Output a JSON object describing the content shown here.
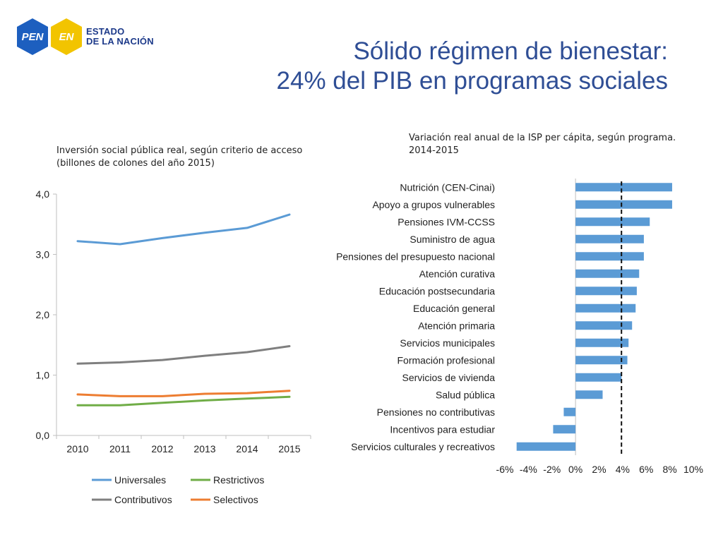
{
  "logo": {
    "badge1": "PEN",
    "badge2": "EN",
    "line1": "ESTADO",
    "line2": "DE LA NACIÓN",
    "colors": {
      "blue": "#1d5fbf",
      "yellow": "#f2c400",
      "text": "#1d3a8a"
    }
  },
  "title": {
    "line1": "Sólido régimen de bienestar:",
    "line2": "24% del PIB en programas sociales"
  },
  "left_subtitle": {
    "line1": "Inversión social pública real, según criterio de acceso",
    "line2": "(billones de colones del año 2015)"
  },
  "right_subtitle": {
    "line1": "Variación real anual de la ISP per cápita, según programa.",
    "line2": "2014-2015"
  },
  "chart_data": [
    {
      "type": "line",
      "title": "Inversión social pública real, según criterio de acceso (billones de colones del año 2015)",
      "x": [
        "2010",
        "2011",
        "2012",
        "2013",
        "2014",
        "2015"
      ],
      "ylim": [
        0,
        4
      ],
      "yticks": [
        0,
        1,
        2,
        3,
        4
      ],
      "ytick_labels": [
        "0,0",
        "1,0",
        "2,0",
        "3,0",
        "4,0"
      ],
      "legend_position": "bottom",
      "series": [
        {
          "name": "Universales",
          "color": "#5b9bd5",
          "values": [
            3.22,
            3.17,
            3.27,
            3.36,
            3.44,
            3.66
          ]
        },
        {
          "name": "Restrictivos",
          "color": "#70ad47",
          "values": [
            0.5,
            0.5,
            0.54,
            0.58,
            0.61,
            0.64
          ]
        },
        {
          "name": "Contributivos",
          "color": "#7f7f7f",
          "values": [
            1.19,
            1.21,
            1.25,
            1.32,
            1.38,
            1.48
          ]
        },
        {
          "name": "Selectivos",
          "color": "#ed7d31",
          "values": [
            0.68,
            0.65,
            0.65,
            0.69,
            0.7,
            0.74
          ]
        }
      ]
    },
    {
      "type": "bar",
      "orientation": "horizontal",
      "title": "Variación real anual de la ISP per cápita, según programa. 2014-2015",
      "bar_color": "#5b9bd5",
      "xlim": [
        -6,
        10
      ],
      "xticks": [
        -6,
        -4,
        -2,
        0,
        2,
        4,
        6,
        8,
        10
      ],
      "xtick_labels": [
        "-6%",
        "-4%",
        "-2%",
        "0%",
        "2%",
        "4%",
        "6%",
        "8%",
        "10%"
      ],
      "reference_line": 3.9,
      "categories": [
        "Nutrición (CEN-Cinai)",
        "Apoyo a grupos vulnerables",
        "Pensiones IVM-CCSS",
        "Suministro de agua",
        "Pensiones del presupuesto nacional",
        "Atención curativa",
        "Educación postsecundaria",
        "Educación general",
        "Atención primaria",
        "Servicios municipales",
        "Formación profesional",
        "Servicios de vivienda",
        "Salud pública",
        "Pensiones no contributivas",
        "Incentivos para estudiar",
        "Servicios culturales y recreativos"
      ],
      "values": [
        8.2,
        8.2,
        6.3,
        5.8,
        5.8,
        5.4,
        5.2,
        5.1,
        4.8,
        4.5,
        4.4,
        3.9,
        2.3,
        -1.0,
        -1.9,
        -5.0
      ]
    }
  ]
}
